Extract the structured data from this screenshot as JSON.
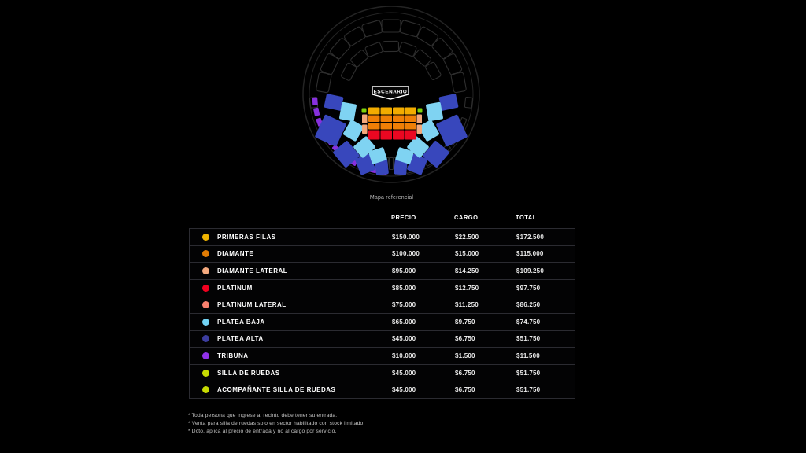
{
  "map": {
    "stage_label": "ESCENARIO",
    "caption": "Mapa referencial",
    "palette": {
      "gold": "#F2AC00",
      "orange": "#EF7F06",
      "red": "#EB0721",
      "peach": "#F3A87B",
      "lime": "#7FD30A",
      "lightblue": "#7FD3F2",
      "blue": "#3847BC",
      "purple": "#8730DD",
      "outline": "#2e2e2e",
      "ring": "#242424"
    }
  },
  "table": {
    "headers": {
      "precio": "PRECIO",
      "cargo": "CARGO",
      "total": "TOTAL"
    },
    "rows": [
      {
        "name": "PRIMERAS FILAS",
        "color": "#EFB300",
        "precio": "$150.000",
        "cargo": "$22.500",
        "total": "$172.500"
      },
      {
        "name": "DIAMANTE",
        "color": "#E17C04",
        "precio": "$100.000",
        "cargo": "$15.000",
        "total": "$115.000"
      },
      {
        "name": "DIAMANTE LATERAL",
        "color": "#F4A97E",
        "precio": "$95.000",
        "cargo": "$14.250",
        "total": "$109.250"
      },
      {
        "name": "PLATINUM",
        "color": "#F2001F",
        "precio": "$85.000",
        "cargo": "$12.750",
        "total": "$97.750"
      },
      {
        "name": "PLATINUM LATERAL",
        "color": "#F8806E",
        "precio": "$75.000",
        "cargo": "$11.250",
        "total": "$86.250"
      },
      {
        "name": "PLATEA BAJA",
        "color": "#72D3F4",
        "precio": "$65.000",
        "cargo": "$9.750",
        "total": "$74.750"
      },
      {
        "name": "PLATEA ALTA",
        "color": "#3C3D9E",
        "precio": "$45.000",
        "cargo": "$6.750",
        "total": "$51.750"
      },
      {
        "name": "TRIBUNA",
        "color": "#9031E8",
        "precio": "$10.000",
        "cargo": "$1.500",
        "total": "$11.500"
      },
      {
        "name": "SILLA DE RUEDAS",
        "color": "#C6DA02",
        "precio": "$45.000",
        "cargo": "$6.750",
        "total": "$51.750"
      },
      {
        "name": "ACOMPAÑANTE SILLA DE RUEDAS",
        "color": "#C6DA02",
        "precio": "$45.000",
        "cargo": "$6.750",
        "total": "$51.750"
      }
    ]
  },
  "notes": [
    "*  Toda persona que ingrese al recinto debe tener su entrada.",
    "*  Venta para silla de ruedas solo en sector habilitado con stock limitado.",
    "*  Dcto. aplica al precio de entrada y no al cargo por servicio."
  ]
}
